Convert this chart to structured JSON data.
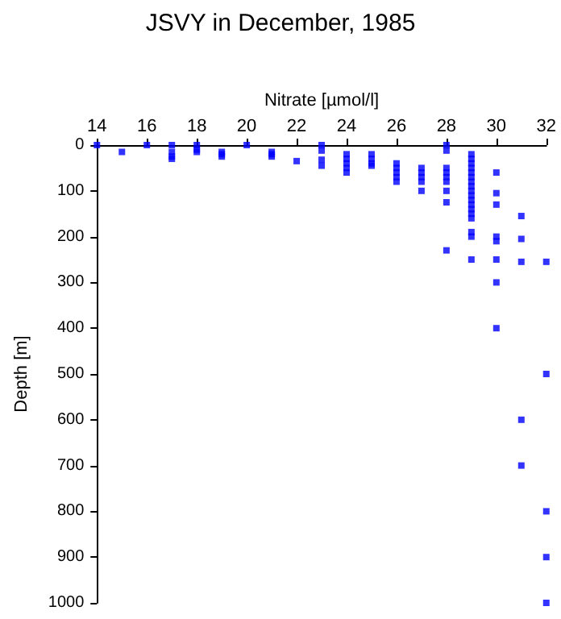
{
  "chart_data": {
    "type": "scatter",
    "title": "JSVY in December, 1985",
    "xlabel": "Nitrate [µmol/l]",
    "ylabel": "Depth [m]",
    "x": [
      14,
      15,
      16,
      17,
      17,
      17,
      17,
      18,
      18,
      18,
      19,
      19,
      19,
      20,
      21,
      21,
      21,
      22,
      23,
      23,
      23,
      23,
      24,
      24,
      24,
      24,
      24,
      25,
      25,
      25,
      25,
      26,
      26,
      26,
      26,
      26,
      27,
      27,
      27,
      27,
      27,
      28,
      28,
      28,
      28,
      28,
      28,
      28,
      28,
      28,
      29,
      29,
      29,
      29,
      29,
      29,
      29,
      29,
      29,
      29,
      29,
      29,
      29,
      29,
      29,
      29,
      29,
      29,
      30,
      30,
      30,
      30,
      30,
      30,
      30,
      30,
      31,
      31,
      31,
      31,
      31,
      32,
      32,
      32,
      32,
      32
    ],
    "values": [
      0,
      15,
      0,
      0,
      15,
      25,
      30,
      0,
      10,
      15,
      15,
      20,
      25,
      0,
      15,
      20,
      25,
      35,
      0,
      12,
      32,
      45,
      20,
      30,
      40,
      50,
      60,
      20,
      30,
      40,
      45,
      40,
      50,
      60,
      70,
      80,
      50,
      60,
      70,
      80,
      100,
      0,
      12,
      50,
      60,
      70,
      80,
      100,
      125,
      230,
      20,
      30,
      40,
      50,
      60,
      70,
      80,
      90,
      100,
      110,
      120,
      130,
      140,
      150,
      160,
      190,
      200,
      250,
      60,
      105,
      130,
      200,
      210,
      250,
      300,
      400,
      155,
      205,
      255,
      600,
      700,
      255,
      500,
      800,
      900,
      1000
    ],
    "color": "#0000ff",
    "marker": "square",
    "xlim": [
      14,
      32
    ],
    "xticks": [
      14,
      16,
      18,
      20,
      22,
      24,
      26,
      28,
      30,
      32
    ],
    "ylim": [
      1000,
      0
    ],
    "yticks": [
      0,
      100,
      200,
      300,
      400,
      500,
      600,
      700,
      800,
      900,
      1000
    ],
    "grid": false
  }
}
